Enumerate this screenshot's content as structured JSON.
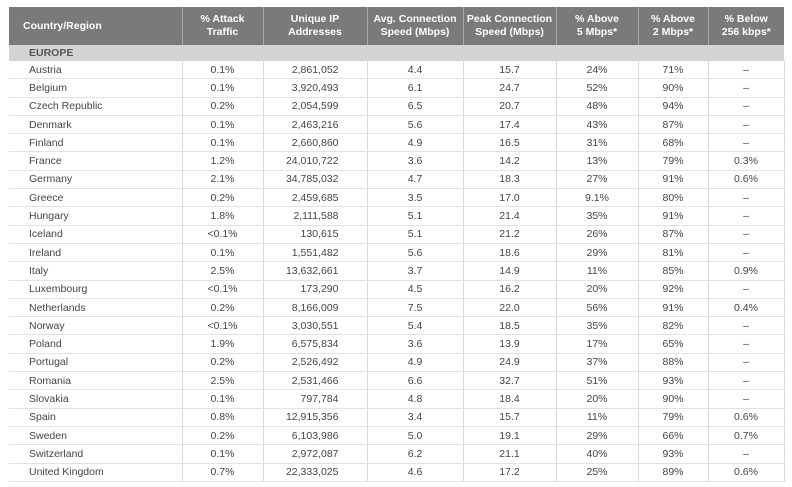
{
  "headers": [
    [
      "Country/Region"
    ],
    [
      "% Attack",
      "Traffic"
    ],
    [
      "Unique IP",
      "Addresses"
    ],
    [
      "Avg. Connection",
      "Speed (Mbps)"
    ],
    [
      "Peak Connection",
      "Speed (Mbps)"
    ],
    [
      "% Above",
      "5 Mbps*"
    ],
    [
      "% Above",
      "2 Mbps*"
    ],
    [
      "% Below",
      "256 kbps*"
    ]
  ],
  "region": "EUROPE",
  "rows": [
    [
      "Austria",
      "0.1%",
      "2,861,052",
      "4.4",
      "15.7",
      "24%",
      "71%",
      "–"
    ],
    [
      "Belgium",
      "0.1%",
      "3,920,493",
      "6.1",
      "24.7",
      "52%",
      "90%",
      "–"
    ],
    [
      "Czech Republic",
      "0.2%",
      "2,054,599",
      "6.5",
      "20.7",
      "48%",
      "94%",
      "–"
    ],
    [
      "Denmark",
      "0.1%",
      "2,463,216",
      "5.6",
      "17.4",
      "43%",
      "87%",
      "–"
    ],
    [
      "Finland",
      "0.1%",
      "2,660,860",
      "4.9",
      "16.5",
      "31%",
      "68%",
      "–"
    ],
    [
      "France",
      "1.2%",
      "24,010,722",
      "3.6",
      "14.2",
      "13%",
      "79%",
      "0.3%"
    ],
    [
      "Germany",
      "2.1%",
      "34,785,032",
      "4.7",
      "18.3",
      "27%",
      "91%",
      "0.6%"
    ],
    [
      "Greece",
      "0.2%",
      "2,459,685",
      "3.5",
      "17.0",
      "9.1%",
      "80%",
      "–"
    ],
    [
      "Hungary",
      "1.8%",
      "2,111,588",
      "5.1",
      "21.4",
      "35%",
      "91%",
      "–"
    ],
    [
      "Iceland",
      "<0.1%",
      "130,615",
      "5.1",
      "21.2",
      "26%",
      "87%",
      "–"
    ],
    [
      "Ireland",
      "0.1%",
      "1,551,482",
      "5.6",
      "18.6",
      "29%",
      "81%",
      "–"
    ],
    [
      "Italy",
      "2.5%",
      "13,632,661",
      "3.7",
      "14.9",
      "11%",
      "85%",
      "0.9%"
    ],
    [
      "Luxembourg",
      "<0.1%",
      "173,290",
      "4.5",
      "16.2",
      "20%",
      "92%",
      "–"
    ],
    [
      "Netherlands",
      "0.2%",
      "8,166,009",
      "7.5",
      "22.0",
      "56%",
      "91%",
      "0.4%"
    ],
    [
      "Norway",
      "<0.1%",
      "3,030,551",
      "5.4",
      "18.5",
      "35%",
      "82%",
      "–"
    ],
    [
      "Poland",
      "1.9%",
      "6,575,834",
      "3.6",
      "13.9",
      "17%",
      "65%",
      "–"
    ],
    [
      "Portugal",
      "0.2%",
      "2,526,492",
      "4.9",
      "24.9",
      "37%",
      "88%",
      "–"
    ],
    [
      "Romania",
      "2.5%",
      "2,531,466",
      "6.6",
      "32.7",
      "51%",
      "93%",
      "–"
    ],
    [
      "Slovakia",
      "0.1%",
      "797,784",
      "4.8",
      "18.4",
      "20%",
      "90%",
      "–"
    ],
    [
      "Spain",
      "0.8%",
      "12,915,356",
      "3.4",
      "15.7",
      "11%",
      "79%",
      "0.6%"
    ],
    [
      "Sweden",
      "0.2%",
      "6,103,986",
      "5.0",
      "19.1",
      "29%",
      "66%",
      "0.7%"
    ],
    [
      "Switzerland",
      "0.1%",
      "2,972,087",
      "6.2",
      "21.1",
      "40%",
      "93%",
      "–"
    ],
    [
      "United Kingdom",
      "0.7%",
      "22,333,025",
      "4.6",
      "17.2",
      "25%",
      "89%",
      "0.6%"
    ]
  ]
}
